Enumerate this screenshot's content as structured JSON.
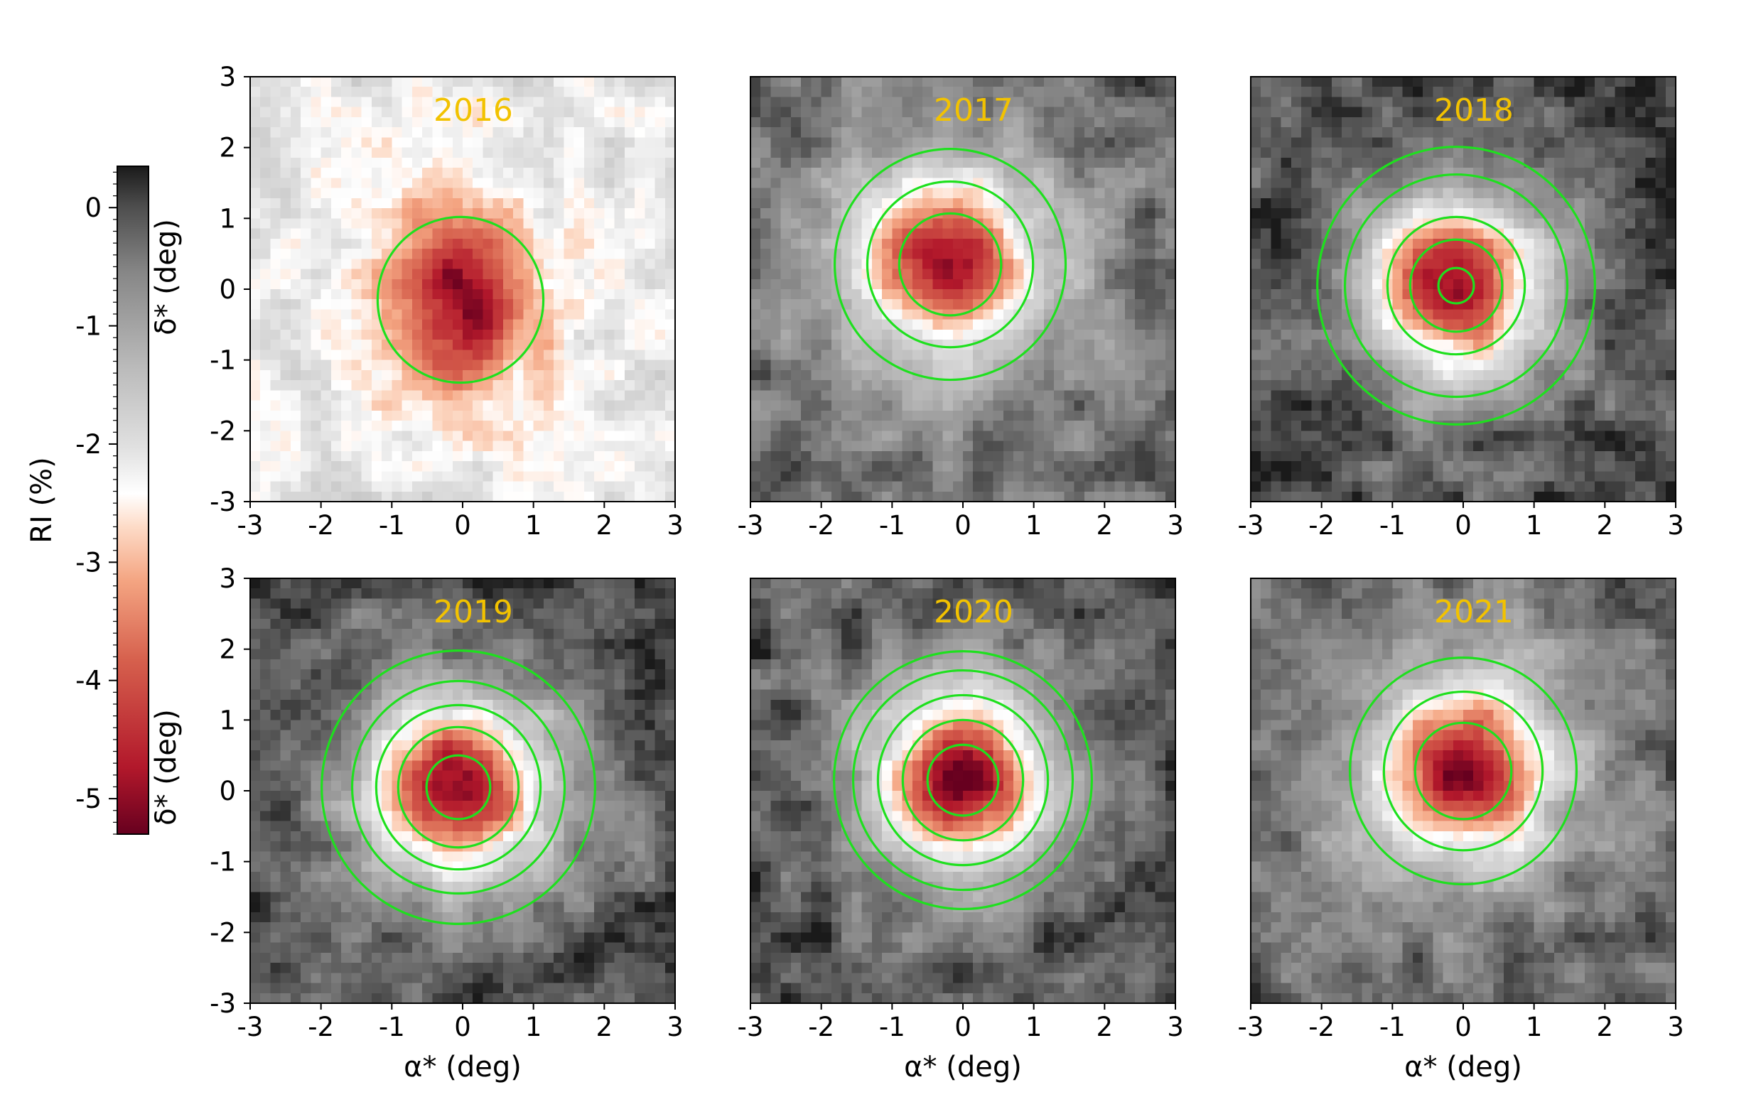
{
  "chart_data": {
    "type": "heatmap",
    "layout": {
      "rows": 2,
      "cols": 3
    },
    "xlabel": "α* (deg)",
    "ylabel": "δ* (deg)",
    "xlim": [
      -3,
      3
    ],
    "ylim": [
      -3,
      3
    ],
    "x_ticks": [
      "-3",
      "-2",
      "-1",
      "0",
      "1",
      "2",
      "3"
    ],
    "y_ticks": [
      "3",
      "2",
      "1",
      "0",
      "-1",
      "-2",
      "-3"
    ],
    "colorbar": {
      "label": "RI (%)",
      "range": [
        -5.3,
        0.35
      ],
      "ticks": [
        "0",
        "-1",
        "-2",
        "-3",
        "-4",
        "-5"
      ],
      "tick_values": [
        0,
        -1,
        -2,
        -3,
        -4,
        -5
      ],
      "colormap": "red-white-gray-black (RdGy_r)",
      "colors": {
        "min": "#67001f",
        "mid": "#ffffff",
        "max": "#1a1a1a"
      }
    },
    "ring_color": "#1ee01e",
    "title_color": "#f2c200",
    "panels": [
      {
        "title": "2016",
        "center": [
          -0.03,
          -0.15
        ],
        "rings": [
          1.17
        ],
        "peak_ri": -5.0,
        "background_ri": -2.0
      },
      {
        "title": "2017",
        "center": [
          -0.18,
          0.35
        ],
        "rings": [
          0.72,
          1.17,
          1.63
        ],
        "peak_ri": -5.2,
        "background_ri": -0.3
      },
      {
        "title": "2018",
        "center": [
          -0.1,
          0.05
        ],
        "rings": [
          0.25,
          0.65,
          0.97,
          1.57,
          1.96
        ],
        "peak_ri": -5.2,
        "background_ri": 0.1
      },
      {
        "title": "2019",
        "center": [
          -0.06,
          0.05
        ],
        "rings": [
          0.45,
          0.85,
          1.16,
          1.5,
          1.93
        ],
        "peak_ri": -5.2,
        "background_ri": 0.0
      },
      {
        "title": "2020",
        "center": [
          0.0,
          0.15
        ],
        "rings": [
          0.5,
          0.85,
          1.2,
          1.55,
          1.82
        ],
        "peak_ri": -5.2,
        "background_ri": 0.0
      },
      {
        "title": "2021",
        "center": [
          0.0,
          0.28
        ],
        "rings": [
          0.68,
          1.12,
          1.6
        ],
        "peak_ri": -5.2,
        "background_ri": -0.2
      }
    ]
  }
}
